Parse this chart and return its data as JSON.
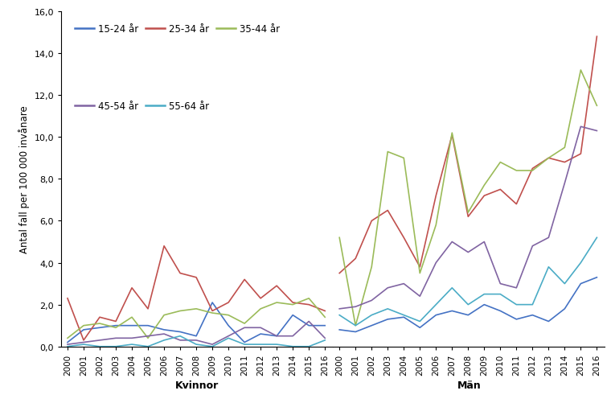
{
  "years": [
    2000,
    2001,
    2002,
    2003,
    2004,
    2005,
    2006,
    2007,
    2008,
    2009,
    2010,
    2011,
    2012,
    2013,
    2014,
    2015,
    2016
  ],
  "kvinnor": {
    "15-24": [
      0.2,
      0.8,
      0.9,
      1.0,
      1.0,
      1.0,
      0.8,
      0.7,
      0.5,
      2.1,
      1.0,
      0.2,
      0.6,
      0.5,
      1.5,
      1.0,
      1.0
    ],
    "25-34": [
      2.3,
      0.3,
      1.4,
      1.2,
      2.8,
      1.8,
      4.8,
      3.5,
      3.3,
      1.7,
      2.1,
      3.2,
      2.3,
      2.9,
      2.1,
      2.0,
      1.7
    ],
    "35-44": [
      0.4,
      1.0,
      1.1,
      0.9,
      1.4,
      0.4,
      1.5,
      1.7,
      1.8,
      1.6,
      1.5,
      1.1,
      1.8,
      2.1,
      2.0,
      2.3,
      1.4
    ],
    "45-54": [
      0.1,
      0.2,
      0.3,
      0.4,
      0.4,
      0.5,
      0.6,
      0.3,
      0.3,
      0.1,
      0.5,
      0.9,
      0.9,
      0.5,
      0.5,
      1.2,
      0.4
    ],
    "55-64": [
      0.0,
      0.1,
      0.0,
      0.0,
      0.1,
      0.0,
      0.3,
      0.5,
      0.1,
      0.0,
      0.4,
      0.1,
      0.1,
      0.1,
      0.0,
      0.0,
      0.3
    ]
  },
  "man": {
    "15-24": [
      0.8,
      0.7,
      1.0,
      1.3,
      1.4,
      0.9,
      1.5,
      1.7,
      1.5,
      2.0,
      1.7,
      1.3,
      1.5,
      1.2,
      1.8,
      3.0,
      3.3
    ],
    "25-34": [
      3.5,
      4.2,
      6.0,
      6.5,
      5.2,
      3.8,
      7.2,
      10.1,
      6.2,
      7.2,
      7.5,
      6.8,
      8.5,
      9.0,
      8.8,
      9.2,
      14.8
    ],
    "35-44": [
      5.2,
      1.0,
      3.8,
      9.3,
      9.0,
      3.5,
      5.8,
      10.2,
      6.4,
      7.7,
      8.8,
      8.4,
      8.4,
      9.0,
      9.5,
      13.2,
      11.5
    ],
    "45-54": [
      1.8,
      1.9,
      2.2,
      2.8,
      3.0,
      2.4,
      4.0,
      5.0,
      4.5,
      5.0,
      3.0,
      2.8,
      4.8,
      5.2,
      7.8,
      10.5,
      10.3
    ],
    "55-64": [
      1.5,
      1.0,
      1.5,
      1.8,
      1.5,
      1.2,
      2.0,
      2.8,
      2.0,
      2.5,
      2.5,
      2.0,
      2.0,
      3.8,
      3.0,
      4.0,
      5.2
    ]
  },
  "colors": {
    "15-24": "#4472C4",
    "25-34": "#C0504D",
    "35-44": "#9BBB59",
    "45-54": "#8064A2",
    "55-64": "#4BACC6"
  },
  "legend_labels": [
    "15-24 år",
    "25-34 år",
    "35-44 år",
    "45-54 år",
    "55-64 år"
  ],
  "ylabel": "Antal fall per 100 000 invånare",
  "xlabel_left": "Kvinnor",
  "xlabel_right": "Män",
  "ylim": [
    0,
    16.0
  ],
  "yticks": [
    0.0,
    2.0,
    4.0,
    6.0,
    8.0,
    10.0,
    12.0,
    14.0,
    16.0
  ]
}
